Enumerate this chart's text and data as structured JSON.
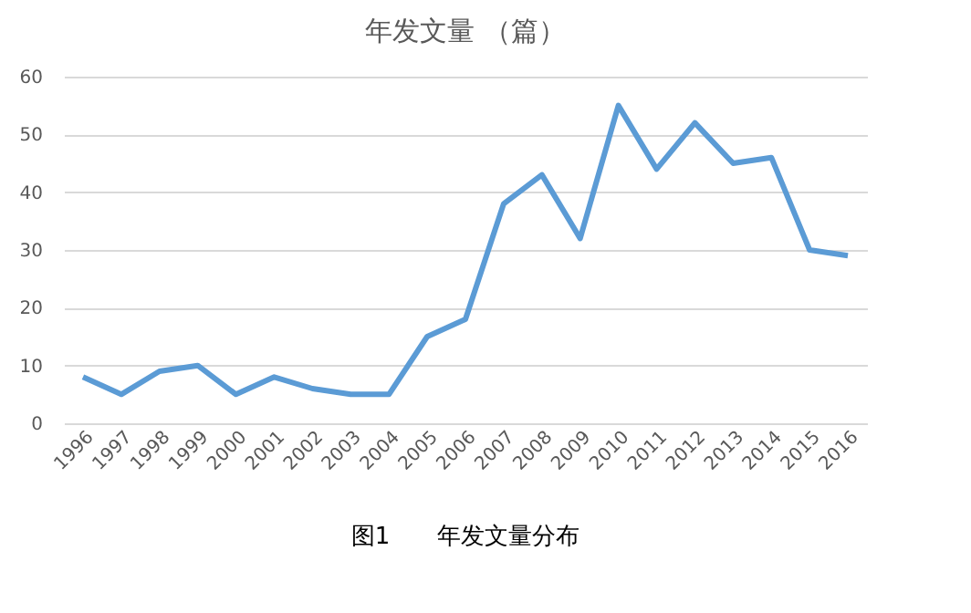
{
  "chart_data": {
    "type": "line",
    "title": "年发文量 （篇）",
    "categories": [
      "1996",
      "1997",
      "1998",
      "1999",
      "2000",
      "2001",
      "2002",
      "2003",
      "2004",
      "2005",
      "2006",
      "2007",
      "2008",
      "2009",
      "2010",
      "2011",
      "2012",
      "2013",
      "2014",
      "2015",
      "2016"
    ],
    "series": [
      {
        "color": "#5b9bd5",
        "values": [
          8,
          5,
          9,
          10,
          5,
          8,
          6,
          5,
          5,
          15,
          18,
          38,
          43,
          32,
          55,
          44,
          52,
          45,
          46,
          30,
          29
        ]
      }
    ],
    "ylim": [
      0,
      60
    ],
    "yticks": [
      0,
      10,
      20,
      30,
      40,
      50,
      60
    ],
    "grid": "y",
    "marker": "none",
    "line_style": "solid",
    "annotations": [
      "图1　　年发文量分布"
    ]
  }
}
